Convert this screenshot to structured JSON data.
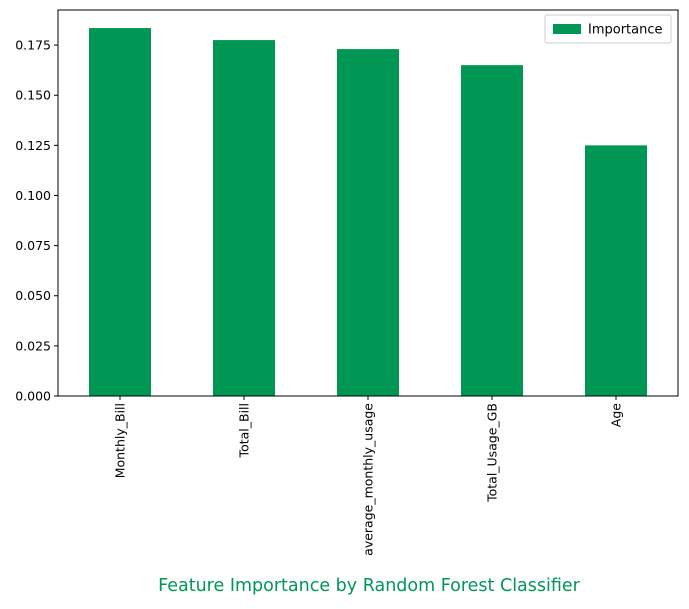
{
  "chart_data": {
    "type": "bar",
    "categories": [
      "Monthly_Bill",
      "Total_Bill",
      "average_monthly_usage",
      "Total_Usage_GB",
      "Age"
    ],
    "series": [
      {
        "name": "Importance",
        "values": [
          0.1835,
          0.1775,
          0.173,
          0.165,
          0.125
        ],
        "color": "#009755"
      }
    ],
    "title": "Feature Importance by Random Forest Classifier",
    "title_position": "bottom",
    "title_color": "#009755",
    "xlabel": "",
    "ylabel": "",
    "ylim": [
      0,
      0.1925
    ],
    "yticks": [
      "0.000",
      "0.025",
      "0.050",
      "0.075",
      "0.100",
      "0.125",
      "0.150",
      "0.175"
    ],
    "xtick_rotation": "vertical",
    "grid": false,
    "legend": {
      "position": "top-right",
      "entries": [
        "Importance"
      ]
    }
  }
}
